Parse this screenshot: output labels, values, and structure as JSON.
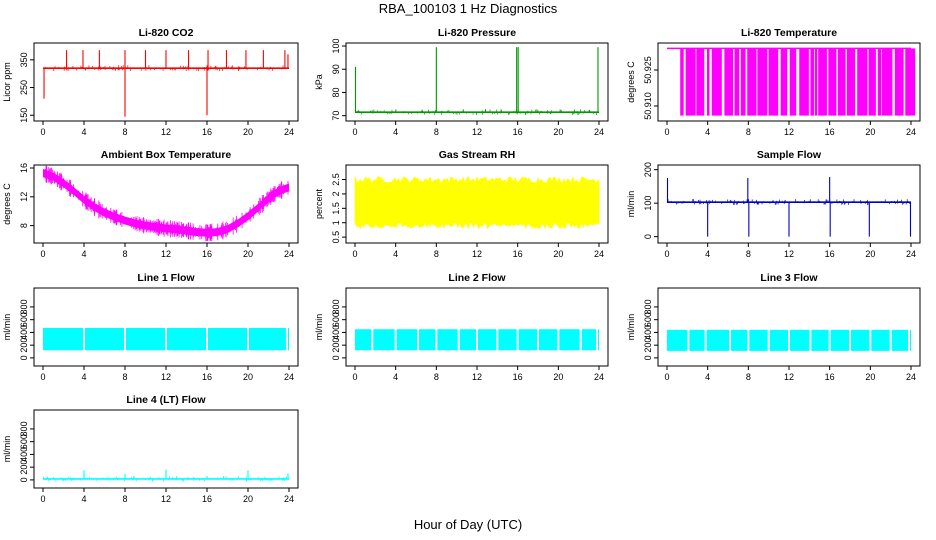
{
  "page": {
    "title": "RBA_100103  1 Hz Diagnostics",
    "xlabel": "Hour of Day (UTC)"
  },
  "chart_data": [
    {
      "type": "line",
      "title": "Li-820 CO2",
      "xlabel": "",
      "ylabel": "Licor ppm",
      "color": "#ff0000",
      "mode": "spiky_line",
      "xlim": [
        0,
        24
      ],
      "ylim": [
        140,
        400
      ],
      "x_ticks": [
        0,
        4,
        8,
        12,
        16,
        20,
        24
      ],
      "y_ticks": [
        150,
        250,
        350
      ],
      "series": [
        {
          "baseline": 320,
          "spikes": [
            {
              "x": 0.1,
              "y": 210
            },
            {
              "x": 2.3,
              "y": 385
            },
            {
              "x": 3.9,
              "y": 385
            },
            {
              "x": 5.5,
              "y": 385
            },
            {
              "x": 8.0,
              "y": 145
            },
            {
              "x": 8.0,
              "y": 385
            },
            {
              "x": 10.0,
              "y": 385
            },
            {
              "x": 12.0,
              "y": 385
            },
            {
              "x": 14.2,
              "y": 385
            },
            {
              "x": 16.0,
              "y": 150
            },
            {
              "x": 16.1,
              "y": 385
            },
            {
              "x": 17.9,
              "y": 385
            },
            {
              "x": 19.8,
              "y": 385
            },
            {
              "x": 21.5,
              "y": 385
            },
            {
              "x": 23.6,
              "y": 385
            },
            {
              "x": 23.9,
              "y": 370
            }
          ]
        }
      ]
    },
    {
      "type": "line",
      "title": "Li-820 Pressure",
      "xlabel": "",
      "ylabel": "kPa",
      "color": "#009900",
      "mode": "spiky_line",
      "xlim": [
        0,
        24
      ],
      "ylim": [
        69,
        100
      ],
      "x_ticks": [
        0,
        4,
        8,
        12,
        16,
        20,
        24
      ],
      "y_ticks": [
        70,
        80,
        90,
        100
      ],
      "series": [
        {
          "baseline": 71.5,
          "spikes": [
            {
              "x": 0.05,
              "y": 91
            },
            {
              "x": 8.0,
              "y": 99.5
            },
            {
              "x": 15.9,
              "y": 99.5
            },
            {
              "x": 16.05,
              "y": 99.5
            },
            {
              "x": 23.9,
              "y": 99.5
            }
          ]
        }
      ]
    },
    {
      "type": "area",
      "title": "Li-820 Temperature",
      "xlabel": "",
      "ylabel": "degrees C",
      "color": "#ff00ff",
      "mode": "dense_bars",
      "xlim": [
        0,
        24
      ],
      "ylim": [
        50.905,
        50.935
      ],
      "x_ticks": [
        0,
        4,
        8,
        12,
        16,
        20,
        24
      ],
      "y_ticks": [
        50.91,
        50.925
      ],
      "y_tick_labels": [
        "50.910",
        "50.925"
      ],
      "series": [
        {
          "top": 50.934,
          "bottom": 50.906,
          "start": 1.3,
          "end": 23.9
        }
      ]
    },
    {
      "type": "line",
      "title": "Ambient Box Temperature",
      "xlabel": "",
      "ylabel": "degrees C",
      "color": "#ff00ff",
      "mode": "thick_curve",
      "xlim": [
        0,
        24
      ],
      "ylim": [
        6,
        16
      ],
      "x_ticks": [
        0,
        4,
        8,
        12,
        16,
        20,
        24
      ],
      "y_ticks": [
        8,
        12,
        16
      ],
      "series": [
        {
          "x": [
            0,
            1,
            2,
            3,
            4,
            5,
            6,
            7,
            8,
            9,
            10,
            11,
            12,
            13,
            14,
            15,
            16,
            17,
            18,
            19,
            20,
            21,
            22,
            23,
            24
          ],
          "y": [
            15.3,
            14.8,
            13.9,
            12.8,
            11.6,
            10.6,
            9.8,
            9.2,
            8.7,
            8.3,
            8.0,
            7.8,
            7.6,
            7.5,
            7.3,
            7.1,
            7.0,
            7.1,
            7.5,
            8.3,
            9.3,
            10.5,
            11.8,
            12.8,
            13.3
          ],
          "band": 0.55
        }
      ]
    },
    {
      "type": "area",
      "title": "Gas Stream RH",
      "xlabel": "",
      "ylabel": "percent",
      "color": "#ffff00",
      "mode": "noise_band",
      "xlim": [
        0,
        24
      ],
      "ylim": [
        0.4,
        2.9
      ],
      "x_ticks": [
        0,
        4,
        8,
        12,
        16,
        20,
        24
      ],
      "y_ticks": [
        0.5,
        1.0,
        1.5,
        2.0,
        2.5
      ],
      "series": [
        {
          "upper_mean": 2.45,
          "lower_mean": 0.95,
          "jitter": 0.22
        }
      ]
    },
    {
      "type": "line",
      "title": "Sample Flow",
      "xlabel": "",
      "ylabel": "ml/min",
      "color": "#0000cc",
      "mode": "spiky_line",
      "xlim": [
        0,
        24
      ],
      "ylim": [
        -10,
        205
      ],
      "x_ticks": [
        0,
        4,
        8,
        12,
        16,
        20,
        24
      ],
      "y_ticks": [
        0,
        100,
        200
      ],
      "series": [
        {
          "baseline": 103,
          "spikes": [
            {
              "x": 0.05,
              "y": 175
            },
            {
              "x": 4.0,
              "y": 0
            },
            {
              "x": 7.95,
              "y": 175
            },
            {
              "x": 8.05,
              "y": 0
            },
            {
              "x": 12.0,
              "y": 0
            },
            {
              "x": 16.0,
              "y": 178
            },
            {
              "x": 16.05,
              "y": 0
            },
            {
              "x": 19.9,
              "y": 0
            },
            {
              "x": 23.95,
              "y": 0
            }
          ]
        }
      ]
    },
    {
      "type": "area",
      "title": "Line 1 Flow",
      "xlabel": "",
      "ylabel": "ml/min",
      "color": "#00ffff",
      "mode": "flow_band",
      "xlim": [
        0,
        24
      ],
      "ylim": [
        -80,
        1050
      ],
      "x_ticks": [
        0,
        4,
        8,
        12,
        16,
        20,
        24
      ],
      "y_ticks": [
        0,
        200,
        400,
        600,
        800
      ],
      "series": [
        {
          "upper": 470,
          "lower": 120,
          "gaps": [
            4.0,
            8.0,
            12.0,
            16.0,
            20.0,
            23.8
          ]
        }
      ]
    },
    {
      "type": "area",
      "title": "Line 2 Flow",
      "xlabel": "",
      "ylabel": "ml/min",
      "color": "#00ffff",
      "mode": "flow_band",
      "xlim": [
        0,
        24
      ],
      "ylim": [
        -80,
        1050
      ],
      "x_ticks": [
        0,
        4,
        8,
        12,
        16,
        20,
        24
      ],
      "y_ticks": [
        0,
        200,
        400,
        600,
        800
      ],
      "series": [
        {
          "upper": 450,
          "lower": 120,
          "gaps": [
            1.7,
            4.0,
            6.2,
            8.0,
            10.2,
            12.0,
            14.0,
            16.0,
            18.0,
            20.0,
            22.2,
            23.8
          ]
        }
      ]
    },
    {
      "type": "area",
      "title": "Line 3 Flow",
      "xlabel": "",
      "ylabel": "ml/min",
      "color": "#00ffff",
      "mode": "flow_band",
      "xlim": [
        0,
        24
      ],
      "ylim": [
        -80,
        1050
      ],
      "x_ticks": [
        0,
        4,
        8,
        12,
        16,
        20,
        24
      ],
      "y_ticks": [
        0,
        200,
        400,
        600,
        800
      ],
      "series": [
        {
          "upper": 440,
          "lower": 110,
          "gaps": [
            2.1,
            3.8,
            6.2,
            8.0,
            10.0,
            12.0,
            14.1,
            16.0,
            18.0,
            20.0,
            22.0,
            23.8
          ]
        }
      ]
    },
    {
      "type": "line",
      "title": "Line 4 (LT) Flow",
      "xlabel": "",
      "ylabel": "ml/min",
      "color": "#00ffff",
      "mode": "spiky_line",
      "xlim": [
        0,
        24
      ],
      "ylim": [
        -80,
        1050
      ],
      "x_ticks": [
        0,
        4,
        8,
        12,
        16,
        20,
        24
      ],
      "y_ticks": [
        0,
        200,
        400,
        600,
        800
      ],
      "series": [
        {
          "baseline": 15,
          "spikes": [
            {
              "x": 4.0,
              "y": 150
            },
            {
              "x": 8.0,
              "y": 90
            },
            {
              "x": 12.0,
              "y": 160
            },
            {
              "x": 16.0,
              "y": 60
            },
            {
              "x": 20.0,
              "y": 150
            },
            {
              "x": 23.9,
              "y": 100
            }
          ]
        }
      ]
    }
  ]
}
